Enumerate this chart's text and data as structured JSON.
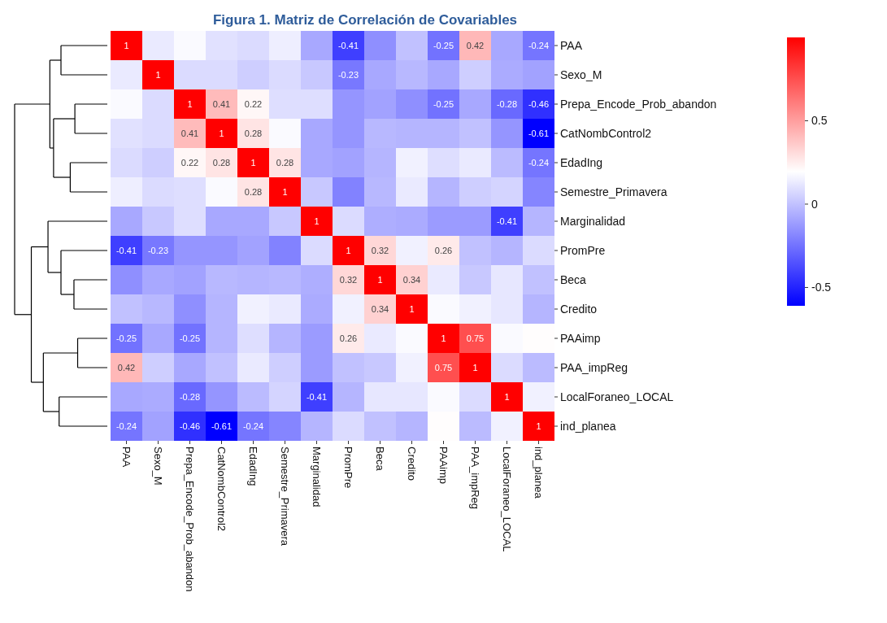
{
  "chart_data": {
    "type": "heatmap",
    "title": "Figura 1. Matriz de Correlación de Covariables",
    "categories": [
      "PAA",
      "Sexo_M",
      "Prepa_Encode_Prob_abandon",
      "CatNombControl2",
      "EdadIng",
      "Semestre_Primavera",
      "Marginalidad",
      "PromPre",
      "Beca",
      "Credito",
      "PAAimp",
      "PAA_impReg",
      "LocalForaneo_LOCAL",
      "ind_planea"
    ],
    "y_categories": [
      "PAA",
      "Sexo_M",
      "Prepa_Encode_Prob_abandon",
      "CatNombControl2",
      "EdadIng",
      "Semestre_Primavera",
      "Marginalidad",
      "PromPre",
      "Beca",
      "Credito",
      "PAAimp",
      "PAA_impReg",
      "LocalForaneo_LOCAL",
      "ind_planea"
    ],
    "cells": [
      [
        1,
        0.13,
        0.18,
        0.1,
        0.08,
        0.14,
        -0.08,
        -0.41,
        -0.16,
        0.0,
        -0.25,
        0.42,
        -0.08,
        -0.24
      ],
      [
        0.13,
        1,
        0.08,
        0.08,
        0.04,
        0.08,
        0.02,
        -0.23,
        -0.08,
        -0.03,
        -0.08,
        0.04,
        -0.07,
        -0.1
      ],
      [
        0.18,
        0.08,
        1,
        0.41,
        0.22,
        0.09,
        0.09,
        -0.14,
        -0.1,
        -0.16,
        -0.25,
        -0.08,
        -0.28,
        -0.46
      ],
      [
        0.1,
        0.08,
        0.41,
        1,
        0.28,
        0.18,
        -0.08,
        -0.14,
        -0.03,
        -0.04,
        -0.04,
        0.0,
        -0.14,
        -0.61
      ],
      [
        0.08,
        0.04,
        0.22,
        0.28,
        1,
        0.28,
        -0.08,
        -0.1,
        -0.04,
        0.15,
        0.09,
        0.13,
        -0.02,
        -0.24
      ],
      [
        0.14,
        0.08,
        0.09,
        0.18,
        0.28,
        1,
        0.02,
        -0.2,
        -0.03,
        0.13,
        -0.04,
        0.04,
        0.06,
        -0.19
      ],
      [
        -0.08,
        0.02,
        0.09,
        -0.08,
        -0.08,
        0.02,
        1,
        0.08,
        -0.06,
        -0.07,
        -0.12,
        -0.12,
        -0.41,
        -0.04
      ],
      [
        -0.41,
        -0.23,
        -0.14,
        -0.14,
        -0.1,
        -0.2,
        0.08,
        1,
        0.32,
        0.15,
        0.26,
        0.0,
        -0.04,
        0.08
      ],
      [
        -0.16,
        -0.08,
        -0.1,
        -0.03,
        -0.04,
        -0.03,
        -0.06,
        0.32,
        1,
        0.34,
        0.13,
        0.02,
        0.12,
        0.0
      ],
      [
        0.0,
        -0.03,
        -0.16,
        -0.04,
        0.15,
        0.13,
        -0.07,
        0.15,
        0.34,
        1,
        0.18,
        0.15,
        0.12,
        -0.04
      ],
      [
        -0.25,
        -0.08,
        -0.25,
        -0.04,
        0.09,
        -0.04,
        -0.12,
        0.26,
        0.13,
        0.18,
        1,
        0.75,
        0.18,
        0.2
      ],
      [
        0.42,
        0.04,
        -0.08,
        0.0,
        0.13,
        0.04,
        -0.12,
        0.0,
        0.02,
        0.15,
        0.75,
        1,
        0.08,
        -0.02
      ],
      [
        -0.08,
        -0.07,
        -0.28,
        -0.14,
        -0.02,
        0.06,
        -0.41,
        -0.04,
        0.12,
        0.12,
        0.18,
        0.08,
        1,
        0.15
      ],
      [
        -0.24,
        -0.1,
        -0.46,
        -0.61,
        -0.24,
        -0.19,
        -0.04,
        0.08,
        0.0,
        -0.04,
        0.2,
        -0.02,
        0.15,
        1
      ]
    ],
    "cell_labels": [
      [
        "1",
        null,
        null,
        null,
        null,
        null,
        null,
        "-0.41",
        null,
        null,
        "-0.25",
        "0.42",
        null,
        "-0.24"
      ],
      [
        null,
        "1",
        null,
        null,
        null,
        null,
        null,
        "-0.23",
        null,
        null,
        null,
        null,
        null,
        null
      ],
      [
        null,
        null,
        "1",
        "0.41",
        "0.22",
        null,
        null,
        null,
        null,
        null,
        "-0.25",
        null,
        "-0.28",
        "-0.46"
      ],
      [
        null,
        null,
        "0.41",
        "1",
        "0.28",
        null,
        null,
        null,
        null,
        null,
        null,
        null,
        null,
        "-0.61"
      ],
      [
        null,
        null,
        "0.22",
        "0.28",
        "1",
        "0.28",
        null,
        null,
        null,
        null,
        null,
        null,
        null,
        "-0.24"
      ],
      [
        null,
        null,
        null,
        null,
        "0.28",
        "1",
        null,
        null,
        null,
        null,
        null,
        null,
        null,
        null
      ],
      [
        null,
        null,
        null,
        null,
        null,
        null,
        "1",
        null,
        null,
        null,
        null,
        null,
        "-0.41",
        null
      ],
      [
        "-0.41",
        "-0.23",
        null,
        null,
        null,
        null,
        null,
        "1",
        "0.32",
        null,
        "0.26",
        null,
        null,
        null
      ],
      [
        null,
        null,
        null,
        null,
        null,
        null,
        null,
        "0.32",
        "1",
        "0.34",
        null,
        null,
        null,
        null
      ],
      [
        null,
        null,
        null,
        null,
        null,
        null,
        null,
        null,
        "0.34",
        "1",
        null,
        null,
        null,
        null
      ],
      [
        "-0.25",
        null,
        "-0.25",
        null,
        null,
        null,
        null,
        "0.26",
        null,
        null,
        "1",
        "0.75",
        null,
        null
      ],
      [
        "0.42",
        null,
        null,
        null,
        null,
        null,
        null,
        null,
        null,
        null,
        "0.75",
        "1",
        null,
        null
      ],
      [
        null,
        null,
        "-0.28",
        null,
        null,
        null,
        "-0.41",
        null,
        null,
        null,
        null,
        null,
        "1",
        null
      ],
      [
        "-0.24",
        null,
        "-0.46",
        "-0.61",
        "-0.24",
        null,
        null,
        null,
        null,
        null,
        null,
        null,
        null,
        "1"
      ]
    ],
    "clim": [
      -0.61,
      1
    ],
    "cticks": [
      {
        "value": -0.5,
        "label": "-0.5"
      },
      0,
      {
        "value": 0.5,
        "label": "0.5"
      }
    ]
  }
}
